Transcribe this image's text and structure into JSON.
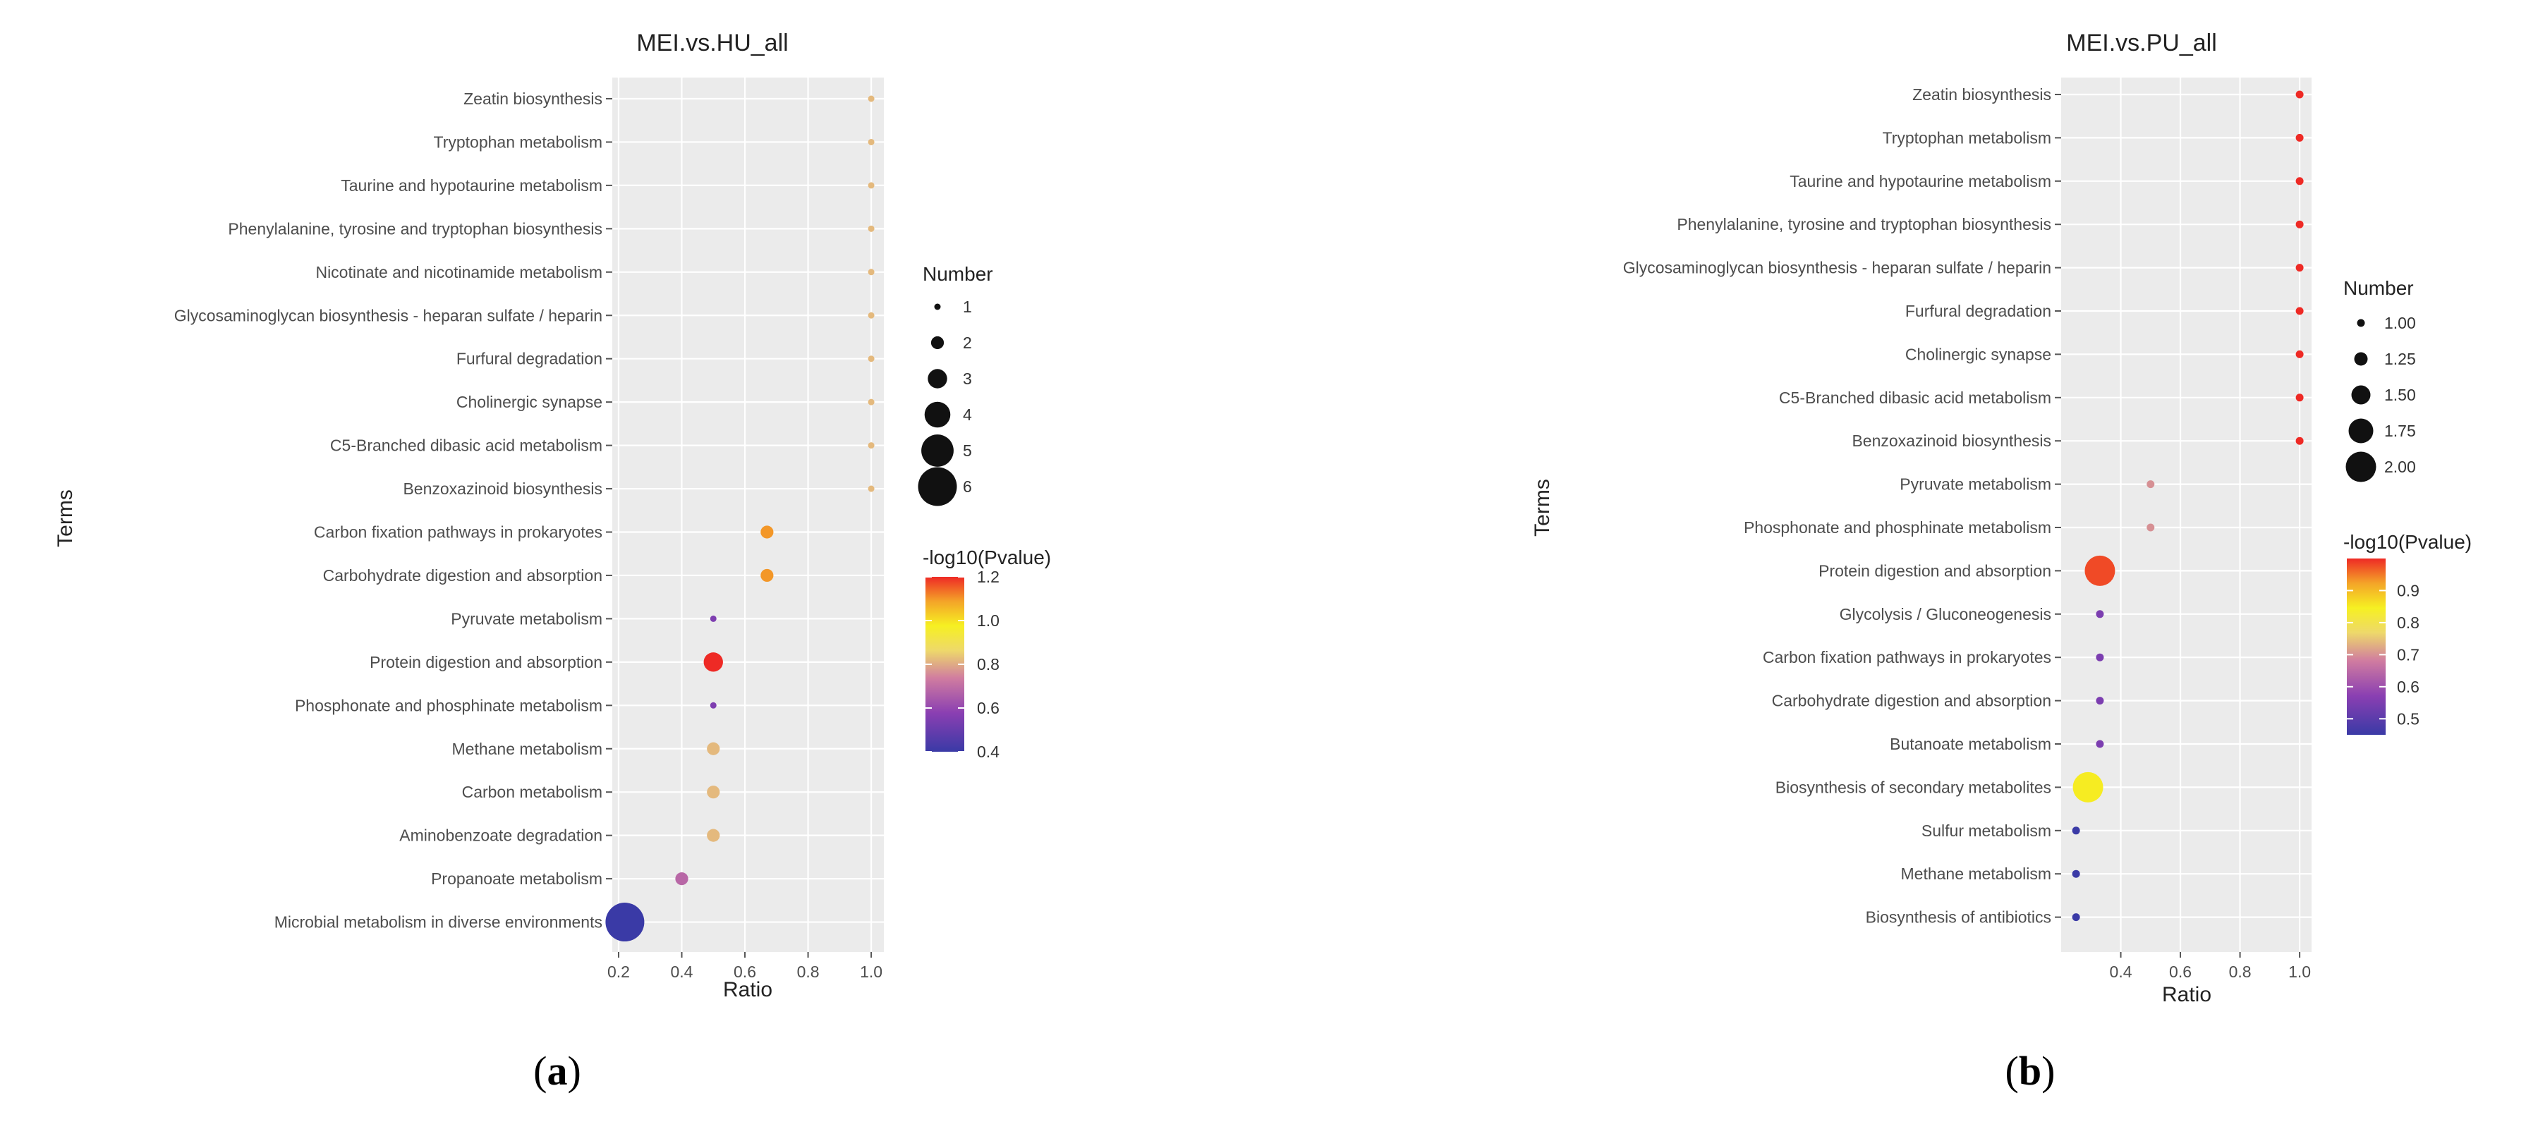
{
  "chart_data": [
    {
      "type": "scatter",
      "title": "MEI.vs.HU_all",
      "xlabel": "Ratio",
      "ylabel": "Terms",
      "subfigure_label": "a",
      "xlim": [
        0.18,
        1.04
      ],
      "xticks": [
        0.2,
        0.4,
        0.6,
        0.8,
        1.0
      ],
      "xtick_labels": [
        "0.2",
        "0.4",
        "0.6",
        "0.8",
        "1.0"
      ],
      "size_legend": {
        "title": "Number",
        "values": [
          1,
          2,
          3,
          4,
          5,
          6
        ],
        "labels": [
          "1",
          "2",
          "3",
          "4",
          "5",
          "6"
        ]
      },
      "color_legend": {
        "title": "-log10(Pvalue)",
        "min": 0.4,
        "max": 1.2,
        "ticks": [
          0.4,
          0.6,
          0.8,
          1.0,
          1.2
        ],
        "tick_labels": [
          "0.4",
          "0.6",
          "0.8",
          "1.0",
          "1.2"
        ]
      },
      "points": [
        {
          "term": "Zeatin biosynthesis",
          "ratio": 1.0,
          "number": 1,
          "neglog10p": 0.82
        },
        {
          "term": "Tryptophan metabolism",
          "ratio": 1.0,
          "number": 1,
          "neglog10p": 0.82
        },
        {
          "term": "Taurine and hypotaurine metabolism",
          "ratio": 1.0,
          "number": 1,
          "neglog10p": 0.82
        },
        {
          "term": "Phenylalanine, tyrosine and tryptophan biosynthesis",
          "ratio": 1.0,
          "number": 1,
          "neglog10p": 0.82
        },
        {
          "term": "Nicotinate and nicotinamide metabolism",
          "ratio": 1.0,
          "number": 1,
          "neglog10p": 0.82
        },
        {
          "term": "Glycosaminoglycan biosynthesis - heparan sulfate / heparin",
          "ratio": 1.0,
          "number": 1,
          "neglog10p": 0.82
        },
        {
          "term": "Furfural degradation",
          "ratio": 1.0,
          "number": 1,
          "neglog10p": 0.82
        },
        {
          "term": "Cholinergic synapse",
          "ratio": 1.0,
          "number": 1,
          "neglog10p": 0.82
        },
        {
          "term": "C5-Branched dibasic acid metabolism",
          "ratio": 1.0,
          "number": 1,
          "neglog10p": 0.82
        },
        {
          "term": "Benzoxazinoid biosynthesis",
          "ratio": 1.0,
          "number": 1,
          "neglog10p": 0.82
        },
        {
          "term": "Carbon fixation pathways in prokaryotes",
          "ratio": 0.67,
          "number": 2,
          "neglog10p": 1.1
        },
        {
          "term": "Carbohydrate digestion and absorption",
          "ratio": 0.67,
          "number": 2,
          "neglog10p": 1.1
        },
        {
          "term": "Pyruvate metabolism",
          "ratio": 0.5,
          "number": 1,
          "neglog10p": 0.55
        },
        {
          "term": "Protein digestion and absorption",
          "ratio": 0.5,
          "number": 3,
          "neglog10p": 1.2
        },
        {
          "term": "Phosphonate and phosphinate metabolism",
          "ratio": 0.5,
          "number": 1,
          "neglog10p": 0.55
        },
        {
          "term": "Methane metabolism",
          "ratio": 0.5,
          "number": 2,
          "neglog10p": 0.82
        },
        {
          "term": "Carbon metabolism",
          "ratio": 0.5,
          "number": 2,
          "neglog10p": 0.82
        },
        {
          "term": "Aminobenzoate degradation",
          "ratio": 0.5,
          "number": 2,
          "neglog10p": 0.82
        },
        {
          "term": "Propanoate metabolism",
          "ratio": 0.4,
          "number": 2,
          "neglog10p": 0.68
        },
        {
          "term": "Microbial metabolism in diverse environments",
          "ratio": 0.22,
          "number": 6,
          "neglog10p": 0.4
        }
      ]
    },
    {
      "type": "scatter",
      "title": "MEI.vs.PU_all",
      "xlabel": "Ratio",
      "ylabel": "Terms",
      "subfigure_label": "b",
      "xlim": [
        0.2,
        1.04
      ],
      "xticks": [
        0.4,
        0.6,
        0.8,
        1.0
      ],
      "xtick_labels": [
        "0.4",
        "0.6",
        "0.8",
        "1.0"
      ],
      "size_legend": {
        "title": "Number",
        "values": [
          1.0,
          1.25,
          1.5,
          1.75,
          2.0
        ],
        "labels": [
          "1.00",
          "1.25",
          "1.50",
          "1.75",
          "2.00"
        ]
      },
      "color_legend": {
        "title": "-log10(Pvalue)",
        "min": 0.45,
        "max": 1.0,
        "ticks": [
          0.5,
          0.6,
          0.7,
          0.8,
          0.9
        ],
        "tick_labels": [
          "0.5",
          "0.6",
          "0.7",
          "0.8",
          "0.9"
        ]
      },
      "points": [
        {
          "term": "Zeatin biosynthesis",
          "ratio": 1.0,
          "number": 1,
          "neglog10p": 1.0
        },
        {
          "term": "Tryptophan metabolism",
          "ratio": 1.0,
          "number": 1,
          "neglog10p": 1.0
        },
        {
          "term": "Taurine and hypotaurine metabolism",
          "ratio": 1.0,
          "number": 1,
          "neglog10p": 1.0
        },
        {
          "term": "Phenylalanine, tyrosine and tryptophan biosynthesis",
          "ratio": 1.0,
          "number": 1,
          "neglog10p": 1.0
        },
        {
          "term": "Glycosaminoglycan biosynthesis - heparan sulfate / heparin",
          "ratio": 1.0,
          "number": 1,
          "neglog10p": 1.0
        },
        {
          "term": "Furfural degradation",
          "ratio": 1.0,
          "number": 1,
          "neglog10p": 1.0
        },
        {
          "term": "Cholinergic synapse",
          "ratio": 1.0,
          "number": 1,
          "neglog10p": 1.0
        },
        {
          "term": "C5-Branched dibasic acid metabolism",
          "ratio": 1.0,
          "number": 1,
          "neglog10p": 1.0
        },
        {
          "term": "Benzoxazinoid biosynthesis",
          "ratio": 1.0,
          "number": 1,
          "neglog10p": 1.0
        },
        {
          "term": "Pyruvate metabolism",
          "ratio": 0.5,
          "number": 1,
          "neglog10p": 0.7
        },
        {
          "term": "Phosphonate and phosphinate metabolism",
          "ratio": 0.5,
          "number": 1,
          "neglog10p": 0.7
        },
        {
          "term": "Protein digestion and absorption",
          "ratio": 0.33,
          "number": 2,
          "neglog10p": 0.98
        },
        {
          "term": "Glycolysis / Gluconeogenesis",
          "ratio": 0.33,
          "number": 1,
          "neglog10p": 0.55
        },
        {
          "term": "Carbon fixation pathways in prokaryotes",
          "ratio": 0.33,
          "number": 1,
          "neglog10p": 0.55
        },
        {
          "term": "Carbohydrate digestion and absorption",
          "ratio": 0.33,
          "number": 1,
          "neglog10p": 0.55
        },
        {
          "term": "Butanoate metabolism",
          "ratio": 0.33,
          "number": 1,
          "neglog10p": 0.55
        },
        {
          "term": "Biosynthesis of secondary metabolites",
          "ratio": 0.29,
          "number": 2,
          "neglog10p": 0.85
        },
        {
          "term": "Sulfur metabolism",
          "ratio": 0.25,
          "number": 1,
          "neglog10p": 0.45
        },
        {
          "term": "Methane metabolism",
          "ratio": 0.25,
          "number": 1,
          "neglog10p": 0.45
        },
        {
          "term": "Biosynthesis of antibiotics",
          "ratio": 0.25,
          "number": 1,
          "neglog10p": 0.45
        }
      ]
    }
  ]
}
